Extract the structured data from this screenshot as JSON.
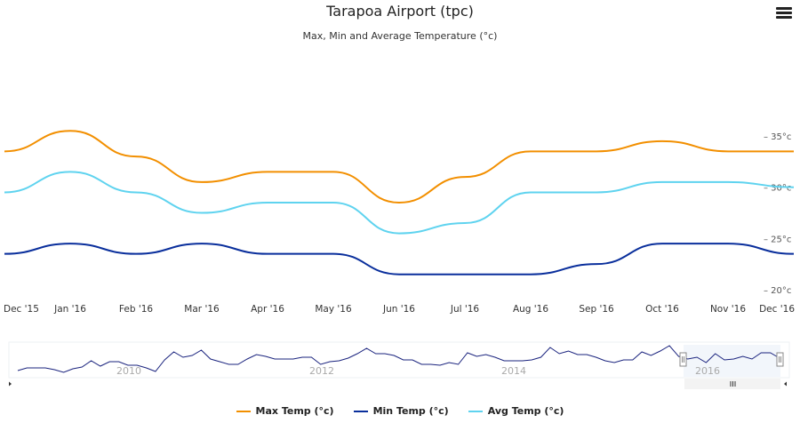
{
  "header": {
    "title": "Tarapoa Airport (tpc)",
    "subtitle": "Max, Min and Average Temperature (°c)",
    "menu_icon": "hamburger-menu-icon"
  },
  "colors": {
    "max": "#f28f00",
    "min": "#0a2f9c",
    "avg": "#5fd3ef",
    "navigator_line": "#1a237e"
  },
  "legend": [
    {
      "label": "Max Temp (°c)",
      "color": "#f28f00"
    },
    {
      "label": "Min Temp (°c)",
      "color": "#0a2f9c"
    },
    {
      "label": "Avg Temp (°c)",
      "color": "#5fd3ef"
    }
  ],
  "navigator": {
    "years": [
      "2010",
      "2012",
      "2014",
      "2016"
    ],
    "scroll_left_icon": "arrow-left-icon",
    "scroll_right_icon": "arrow-right-icon",
    "grip_icon": "grip-icon"
  },
  "chart_data": {
    "type": "line",
    "title": "Tarapoa Airport (tpc)",
    "subtitle": "Max, Min and Average Temperature (°c)",
    "xlabel": "",
    "ylabel": "",
    "categories": [
      "Dec '15",
      "Jan '16",
      "Feb '16",
      "Mar '16",
      "Apr '16",
      "May '16",
      "Jun '16",
      "Jul '16",
      "Aug '16",
      "Sep '16",
      "Oct '16",
      "Nov '16",
      "Dec '16"
    ],
    "y_ticks": [
      "35°c",
      "30°c",
      "25°c",
      "20°c"
    ],
    "ylim": [
      20,
      35
    ],
    "grid": false,
    "legend_position": "bottom",
    "series": [
      {
        "name": "Max Temp (°c)",
        "values": [
          33.5,
          35.5,
          33,
          30.5,
          31.5,
          31.5,
          28.5,
          31,
          33.5,
          33.5,
          34.5,
          33.5,
          33.5
        ]
      },
      {
        "name": "Min Temp (°c)",
        "values": [
          23.5,
          24.5,
          23.5,
          24.5,
          23.5,
          23.5,
          21.5,
          21.5,
          21.5,
          22.5,
          24.5,
          24.5,
          23.5
        ]
      },
      {
        "name": "Avg Temp (°c)",
        "values": [
          29.5,
          31.5,
          29.5,
          27.5,
          28.5,
          28.5,
          25.5,
          26.5,
          29.5,
          29.5,
          30.5,
          30.5,
          30
        ]
      }
    ]
  }
}
